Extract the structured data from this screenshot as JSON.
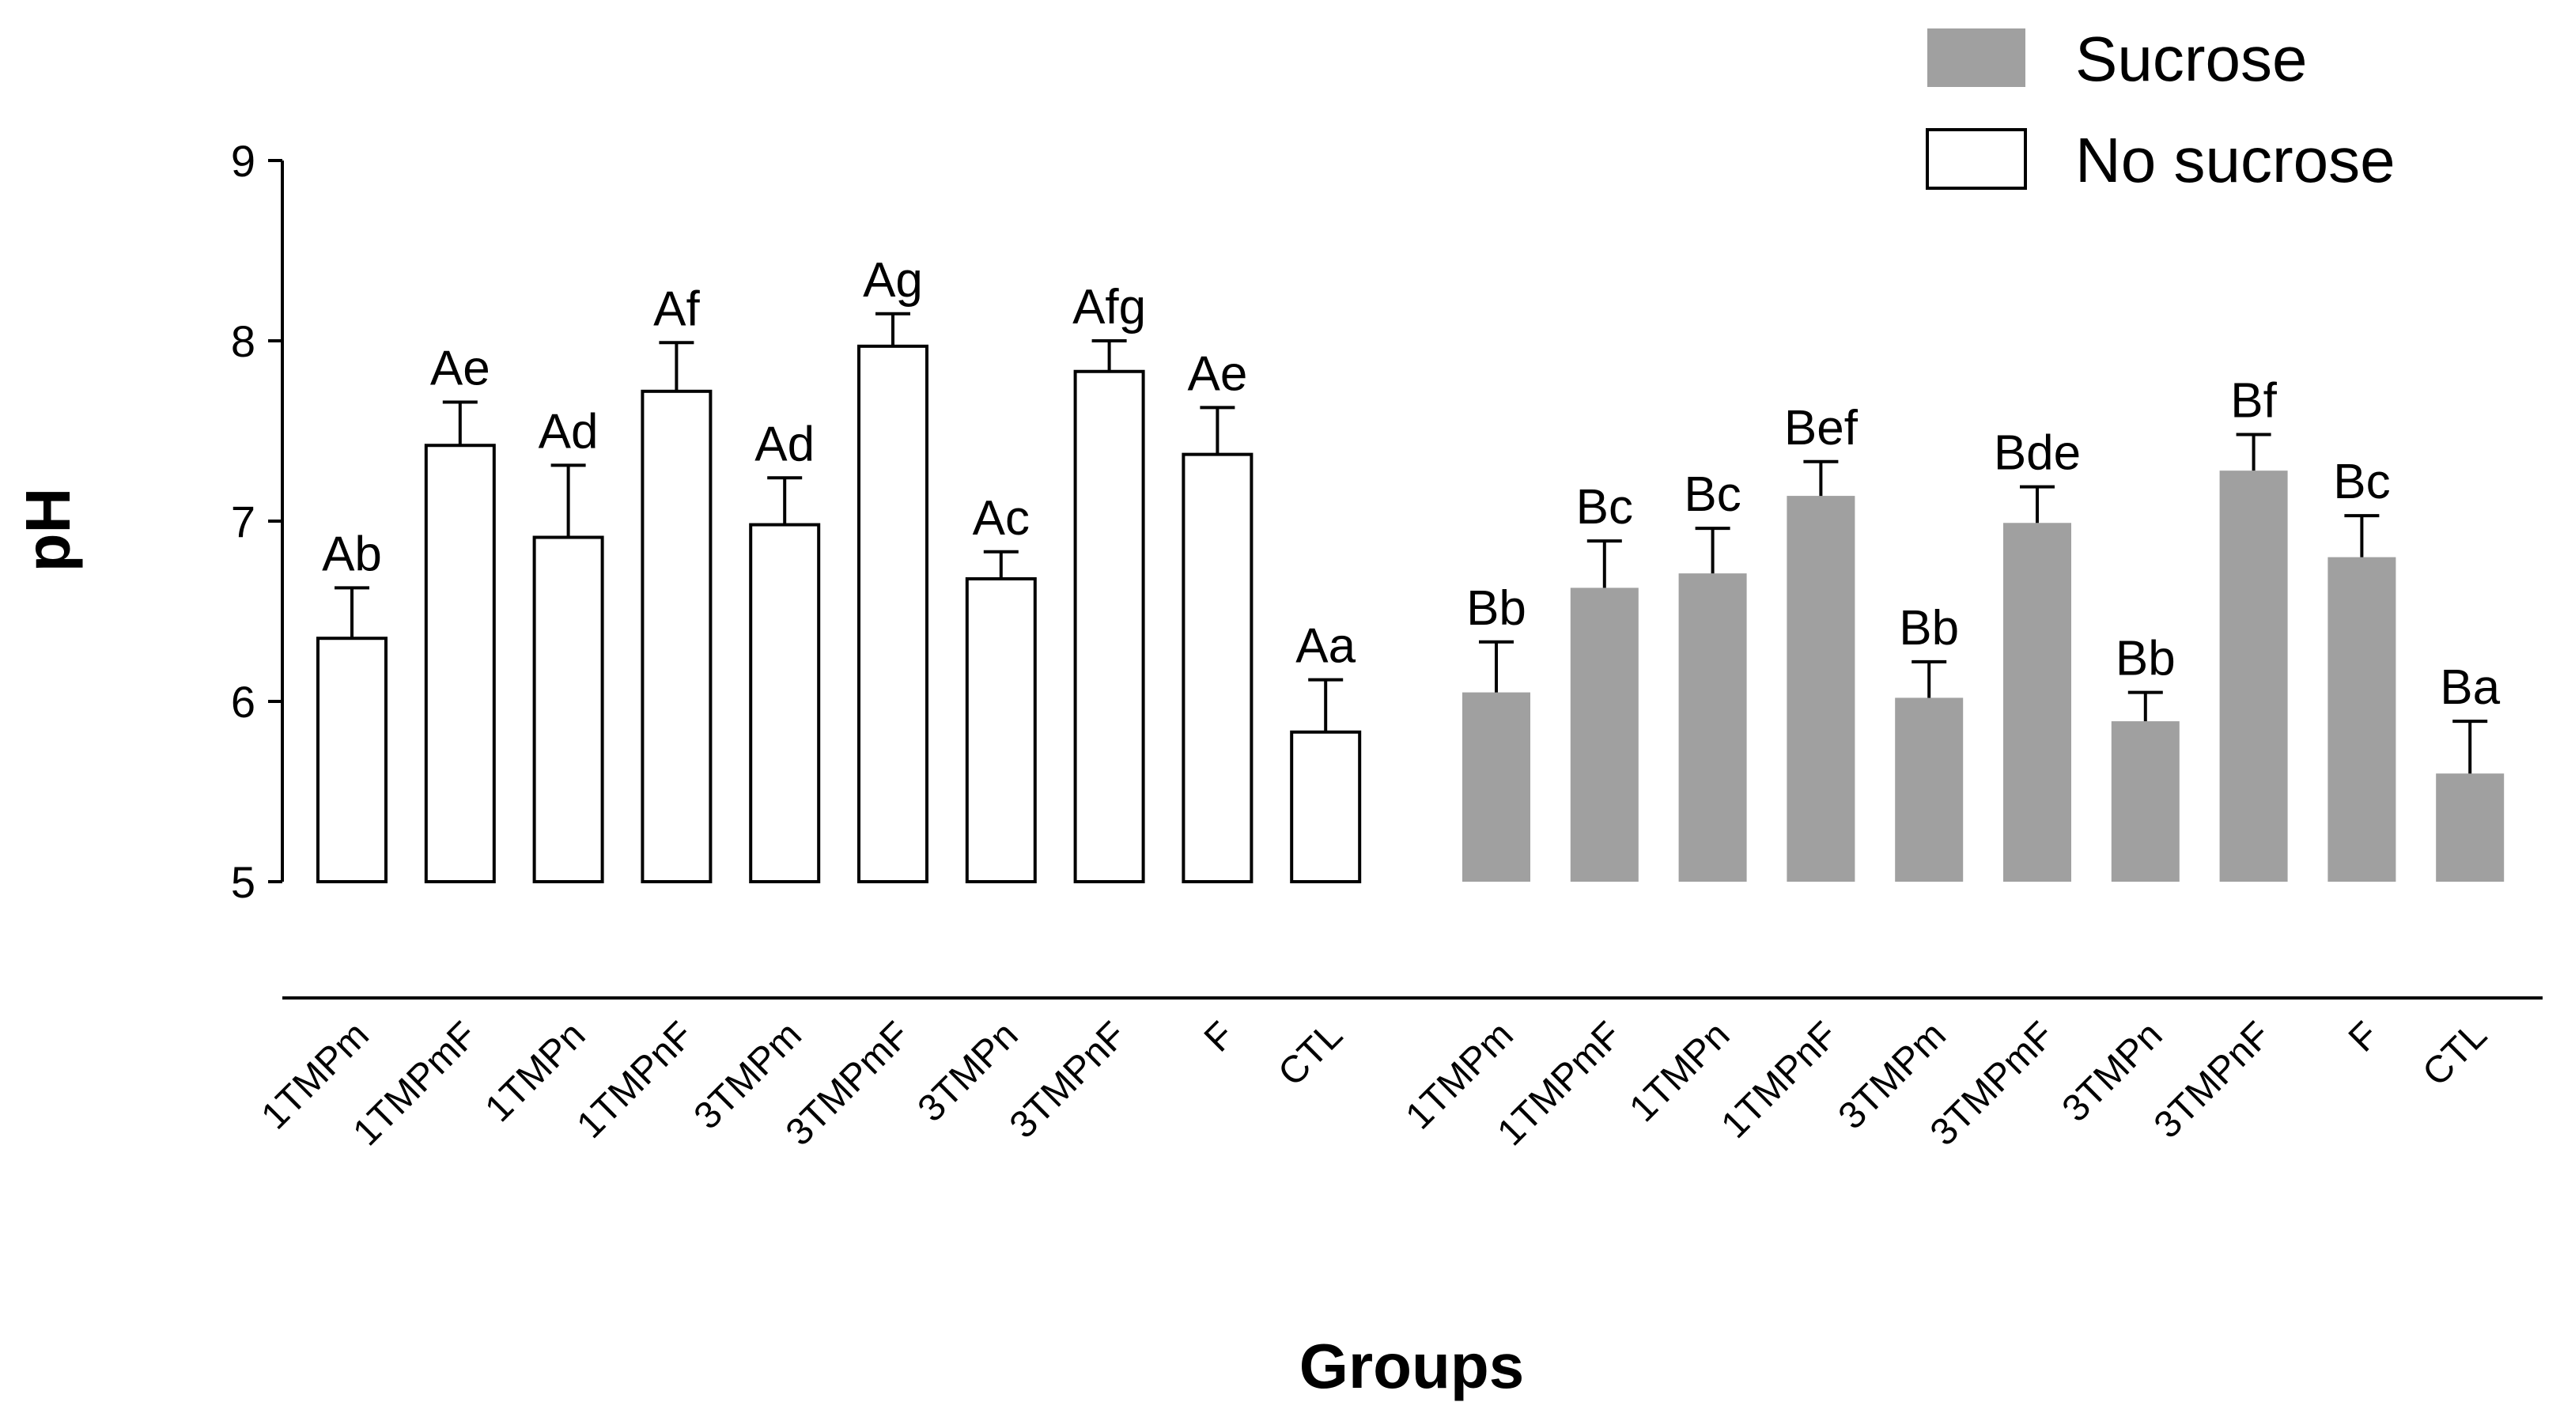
{
  "chart_data": {
    "type": "bar",
    "title": "",
    "xlabel": "Groups",
    "ylabel": "pH",
    "ylim": [
      5,
      9
    ],
    "yticks": [
      "5",
      "6",
      "7",
      "8",
      "9"
    ],
    "grid": false,
    "legend_position": "top-right",
    "colors": {
      "sucrose": "#a0a0a0",
      "no_sucrose": "#ffffff",
      "stroke": "#000000"
    },
    "legend": [
      {
        "name": "Sucrose",
        "fill": "#a0a0a0"
      },
      {
        "name": "No sucrose",
        "fill": "#ffffff"
      }
    ],
    "categories": [
      "1TMPm",
      "1TMPmF",
      "1TMPn",
      "1TMPnF",
      "3TMPm",
      "3TMPmF",
      "3TMPn",
      "3TMPnF",
      "F",
      "CTL"
    ],
    "series": [
      {
        "name": "No sucrose",
        "values": [
          6.35,
          7.42,
          6.91,
          7.72,
          6.98,
          7.97,
          6.68,
          7.83,
          7.37,
          5.83
        ],
        "errors": [
          0.28,
          0.24,
          0.4,
          0.27,
          0.26,
          0.18,
          0.15,
          0.17,
          0.26,
          0.29
        ],
        "labels": [
          "Ab",
          "Ae",
          "Ad",
          "Af",
          "Ad",
          "Ag",
          "Ac",
          "Afg",
          "Ae",
          "Aa"
        ]
      },
      {
        "name": "Sucrose",
        "values": [
          6.05,
          6.63,
          6.71,
          7.14,
          6.02,
          6.99,
          5.89,
          7.28,
          6.8,
          5.6
        ],
        "errors": [
          0.28,
          0.26,
          0.25,
          0.19,
          0.2,
          0.2,
          0.16,
          0.2,
          0.23,
          0.29
        ],
        "labels": [
          "Bb",
          "Bc",
          "Bc",
          "Bef",
          "Bb",
          "Bde",
          "Bb",
          "Bf",
          "Bc",
          "Ba"
        ]
      }
    ]
  }
}
